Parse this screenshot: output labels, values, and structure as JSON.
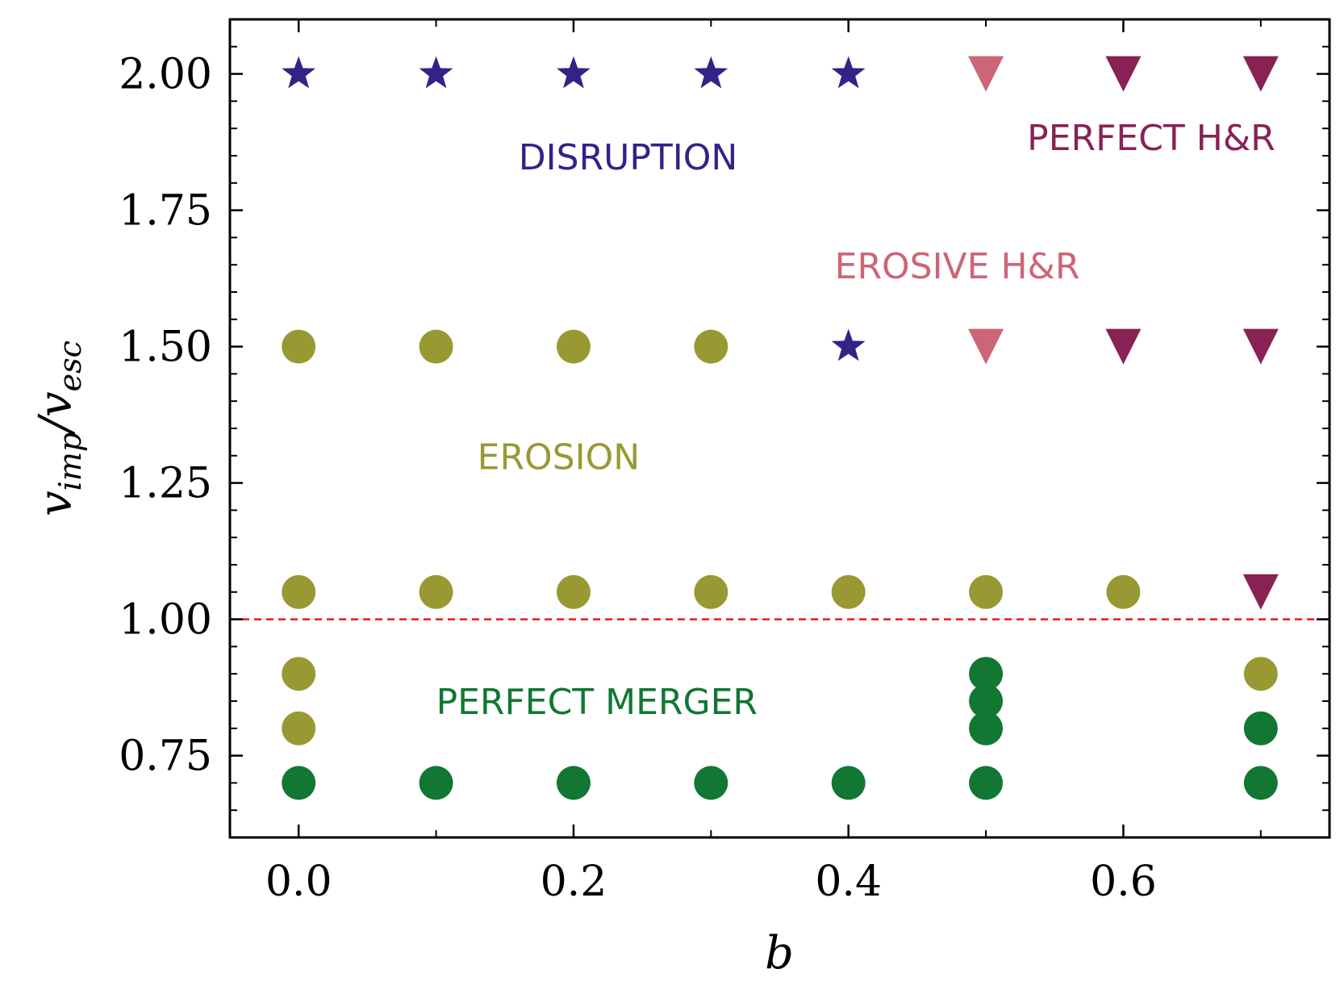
{
  "chart_data": {
    "type": "scatter",
    "xlabel": "b",
    "ylabel": "v",
    "ylabel_subscripts": [
      "imp",
      "esc"
    ],
    "xlim": [
      -0.05,
      0.75
    ],
    "ylim": [
      0.6,
      2.1
    ],
    "x_ticks": [
      0.0,
      0.2,
      0.4,
      0.6
    ],
    "x_tick_labels": [
      "0.0",
      "0.2",
      "0.4",
      "0.6"
    ],
    "x_minor_ticks": [
      0.1,
      0.3,
      0.5,
      0.7
    ],
    "y_ticks": [
      0.75,
      1.0,
      1.25,
      1.5,
      1.75,
      2.0
    ],
    "y_tick_labels": [
      "0.75",
      "1.00",
      "1.25",
      "1.50",
      "1.75",
      "2.00"
    ],
    "y_minor_ticks": [
      0.65,
      0.7,
      0.8,
      0.85,
      0.9,
      0.95,
      1.05,
      1.1,
      1.15,
      1.2,
      1.3,
      1.35,
      1.4,
      1.45,
      1.55,
      1.6,
      1.65,
      1.7,
      1.8,
      1.85,
      1.9,
      1.95,
      2.05
    ],
    "reference_line": {
      "y": 1.0,
      "color": "#e41a1c",
      "style": "dashed"
    },
    "series": [
      {
        "name": "Disruption",
        "marker": "star",
        "color": "#332288",
        "points": [
          [
            0.0,
            2.0
          ],
          [
            0.1,
            2.0
          ],
          [
            0.2,
            2.0
          ],
          [
            0.3,
            2.0
          ],
          [
            0.4,
            2.0
          ],
          [
            0.4,
            1.5
          ]
        ]
      },
      {
        "name": "Erosive H&R",
        "marker": "triangle-down",
        "color": "#CC6677",
        "points": [
          [
            0.5,
            2.0
          ],
          [
            0.5,
            1.5
          ]
        ]
      },
      {
        "name": "Perfect H&R",
        "marker": "triangle-down",
        "color": "#882255",
        "points": [
          [
            0.6,
            2.0
          ],
          [
            0.7,
            2.0
          ],
          [
            0.6,
            1.5
          ],
          [
            0.7,
            1.5
          ],
          [
            0.7,
            1.05
          ]
        ]
      },
      {
        "name": "Erosion",
        "marker": "circle",
        "color": "#999933",
        "points": [
          [
            0.0,
            1.5
          ],
          [
            0.1,
            1.5
          ],
          [
            0.2,
            1.5
          ],
          [
            0.3,
            1.5
          ],
          [
            0.0,
            1.05
          ],
          [
            0.1,
            1.05
          ],
          [
            0.2,
            1.05
          ],
          [
            0.3,
            1.05
          ],
          [
            0.4,
            1.05
          ],
          [
            0.5,
            1.05
          ],
          [
            0.6,
            1.05
          ],
          [
            0.0,
            0.9
          ],
          [
            0.0,
            0.8
          ],
          [
            0.7,
            0.9
          ]
        ]
      },
      {
        "name": "Perfect merger",
        "marker": "circle",
        "color": "#117733",
        "points": [
          [
            0.0,
            0.7
          ],
          [
            0.1,
            0.7
          ],
          [
            0.2,
            0.7
          ],
          [
            0.3,
            0.7
          ],
          [
            0.4,
            0.7
          ],
          [
            0.5,
            0.7
          ],
          [
            0.5,
            0.8
          ],
          [
            0.5,
            0.85
          ],
          [
            0.5,
            0.9
          ],
          [
            0.7,
            0.8
          ],
          [
            0.7,
            0.7
          ]
        ]
      }
    ],
    "annotations": [
      {
        "text": "DISRUPTION",
        "x": 0.16,
        "y": 1.825,
        "color": "#332288"
      },
      {
        "text": "PERFECT H&R",
        "x": 0.53,
        "y": 1.86,
        "color": "#882255"
      },
      {
        "text": "EROSIVE H&R",
        "x": 0.39,
        "y": 1.625,
        "color": "#CC6677"
      },
      {
        "text": "EROSION",
        "x": 0.13,
        "y": 1.275,
        "color": "#999933"
      },
      {
        "text": "PERFECT MERGER",
        "x": 0.1,
        "y": 0.826,
        "color": "#117733"
      }
    ]
  }
}
